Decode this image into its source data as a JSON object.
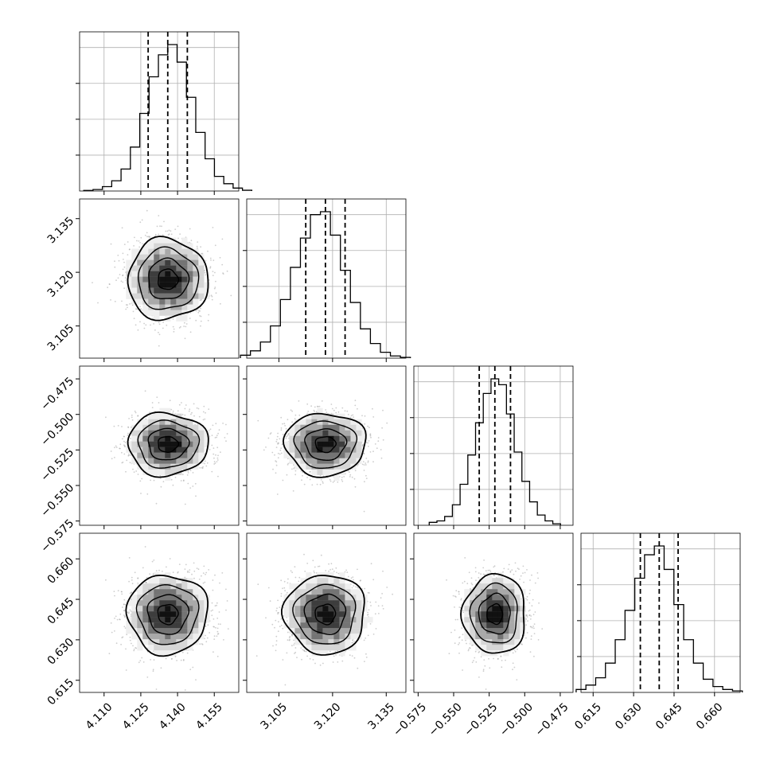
{
  "chart_data": {
    "type": "corner",
    "title": "",
    "grid": true,
    "colors": {
      "line": "#000000",
      "grid": "#b0b0b0",
      "scatter": "#9e9e9e"
    },
    "parameters": [
      {
        "index": 0,
        "range": [
          4.1,
          4.165
        ],
        "ticks": [
          "4.110",
          "4.125",
          "4.140",
          "4.155"
        ],
        "tick_values": [
          4.11,
          4.125,
          4.14,
          4.155
        ],
        "quantiles": [
          4.128,
          4.136,
          4.144
        ],
        "center": 4.136,
        "sigma": 0.0078
      },
      {
        "index": 1,
        "range": [
          3.096,
          3.1405
        ],
        "ticks": [
          "3.105",
          "3.120",
          "3.135"
        ],
        "tick_values": [
          3.105,
          3.12,
          3.135
        ],
        "quantiles": [
          3.1125,
          3.118,
          3.1235
        ],
        "center": 3.118,
        "sigma": 0.0054
      },
      {
        "index": 2,
        "range": [
          -0.578,
          -0.466
        ],
        "ticks": [
          "−0.575",
          "−0.550",
          "−0.525",
          "−0.500",
          "−0.475"
        ],
        "tick_values": [
          -0.575,
          -0.55,
          -0.525,
          -0.5,
          -0.475
        ],
        "quantiles": [
          -0.532,
          -0.521,
          -0.51
        ],
        "center": -0.521,
        "sigma": 0.0105
      },
      {
        "index": 3,
        "range": [
          0.6105,
          0.6695
        ],
        "ticks": [
          "0.615",
          "0.630",
          "0.645",
          "0.660"
        ],
        "tick_values": [
          0.615,
          0.63,
          0.645,
          0.66
        ],
        "quantiles": [
          0.6325,
          0.6395,
          0.6465
        ],
        "center": 0.6395,
        "sigma": 0.007
      }
    ],
    "histograms": [
      [
        0.004,
        0.01,
        0.03,
        0.07,
        0.15,
        0.3,
        0.53,
        0.78,
        0.93,
        1.0,
        0.88,
        0.64,
        0.4,
        0.22,
        0.1,
        0.05,
        0.02,
        0.005
      ],
      [
        0.02,
        0.05,
        0.11,
        0.22,
        0.4,
        0.62,
        0.82,
        0.98,
        1.0,
        0.84,
        0.6,
        0.38,
        0.2,
        0.1,
        0.04,
        0.015,
        0.005
      ],
      [
        0.02,
        0.03,
        0.06,
        0.14,
        0.28,
        0.48,
        0.7,
        0.9,
        1.0,
        0.96,
        0.76,
        0.5,
        0.3,
        0.16,
        0.07,
        0.03,
        0.01
      ],
      [
        0.02,
        0.05,
        0.1,
        0.2,
        0.36,
        0.56,
        0.78,
        0.94,
        1.0,
        0.84,
        0.6,
        0.36,
        0.2,
        0.09,
        0.04,
        0.02,
        0.01
      ]
    ],
    "contour_levels_sigma": [
      0.5,
      1.0,
      1.5,
      2.0
    ]
  }
}
